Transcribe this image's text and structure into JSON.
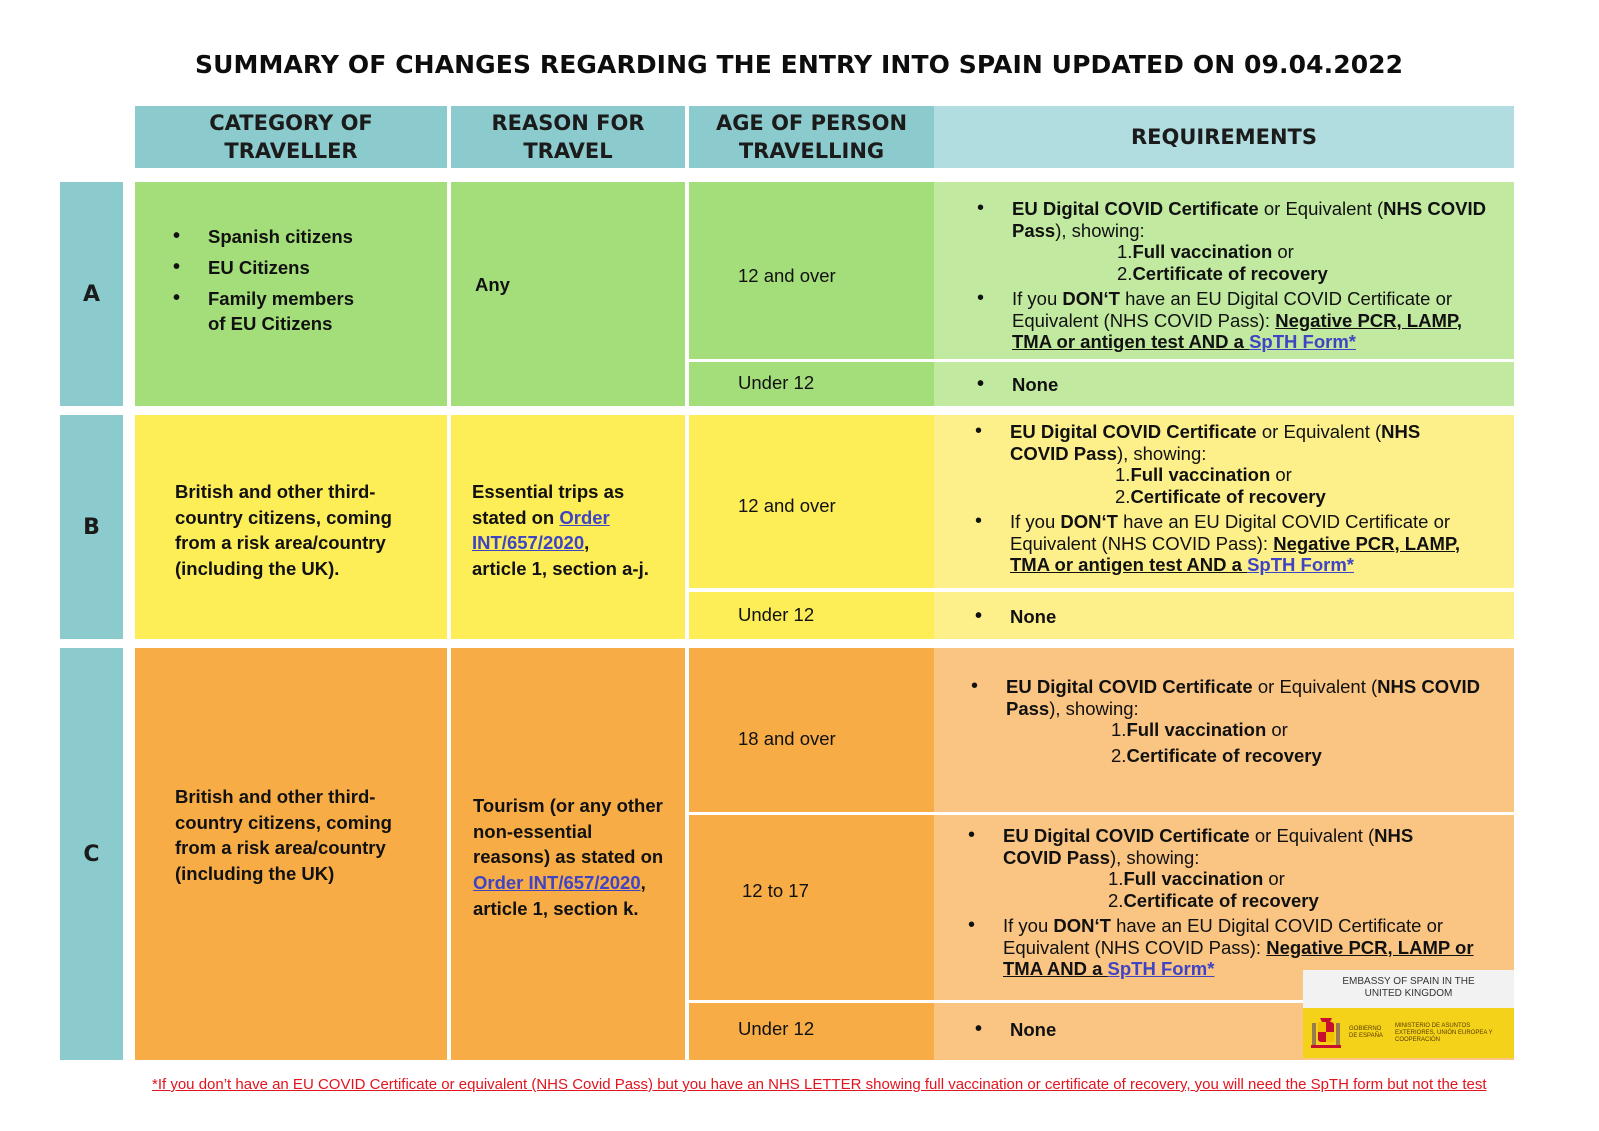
{
  "title": "SUMMARY OF CHANGES REGARDING THE ENTRY INTO SPAIN UPDATED ON 09.04.2022",
  "headers": {
    "category": "CATEGORY OF TRAVELLER",
    "reason": "REASON FOR TRAVEL",
    "age": "AGE OF PERSON TRAVELLING",
    "requirements": "REQUIREMENTS"
  },
  "colors": {
    "header_teal": "#8ccbcd",
    "green": "#a4de7a",
    "yellow": "#fded57",
    "orange": "#f7ac46",
    "link": "#3f44c4",
    "footnote": "#e2141f"
  },
  "common": {
    "cert": "EU Digital COVID Certificate",
    "or_equiv": " or Equivalent (",
    "nhs_pass": "NHS COVID Pass",
    "showing": "), showing:",
    "n1": "1.",
    "full_vacc": "Full vaccination",
    "or": " or",
    "n2": "2.",
    "cert_recovery": "Certificate of recovery",
    "if_you": "If you ",
    "dont": "DON‘T",
    "have_an": " have an EU Digital COVID Certificate or Equivalent (NHS COVID Pass): ",
    "negative": "Negative ",
    "and_a": " AND a ",
    "spth": "SpTH Form*",
    "none": "None",
    "order": "Order INT/657/2020",
    "comma": ","
  },
  "rows": {
    "a": {
      "label": "A",
      "category_items": [
        "Spanish citizens",
        "EU Citizens",
        "Family members of EU Citizens"
      ],
      "reason": "Any",
      "age_1": "12 and over",
      "age_2": "Under 12",
      "test_list": "PCR, LAMP, TMA or antigen test"
    },
    "b": {
      "label": "B",
      "category": "British and other third-country citizens, coming from a risk area/country (including the UK).",
      "reason_pre": "Essential trips as stated on ",
      "reason_post": "article 1, section a-j.",
      "age_1": "12 and over",
      "age_2": "Under 12",
      "test_list": "PCR, LAMP, TMA or antigen test"
    },
    "c": {
      "label": "C",
      "category": "British and other third-country citizens, coming from a risk area/country (including the UK)",
      "reason_pre": "Tourism (or any other non-essential reasons) as stated on ",
      "reason_post": "article 1, section k.",
      "age_1": "18 and over",
      "age_2": "12 to 17",
      "age_3": "Under 12",
      "test_list": "PCR, LAMP or TMA"
    }
  },
  "footnote": "*If you don’t have an EU COVID Certificate or equivalent (NHS Covid Pass) but you have an NHS LETTER showing full vaccination or certificate of recovery, you will need the SpTH form but not the test",
  "badge": {
    "embassy": "EMBASSY OF SPAIN IN THE UNITED KINGDOM",
    "gobierno": "GOBIERNO DE ESPAÑA",
    "ministerio": "MINISTERIO DE ASUNTOS EXTERIORES, UNIÓN EUROPEA Y COOPERACIÓN"
  }
}
